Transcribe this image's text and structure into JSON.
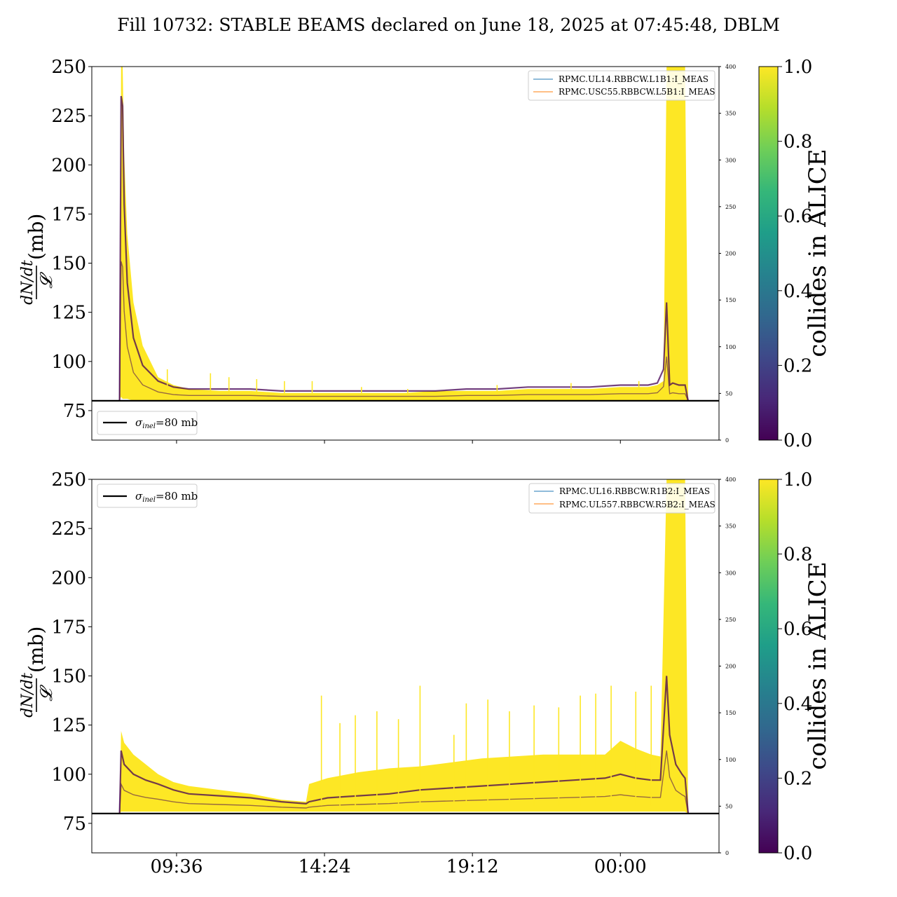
{
  "title": "Fill 10732: STABLE BEAMS declared on June 18, 2025 at 07:45:48, DBLM",
  "colors": {
    "viridis": [
      "#440154",
      "#482878",
      "#3e4989",
      "#31688e",
      "#26828e",
      "#1f9e89",
      "#35b779",
      "#6ece58",
      "#b5de2b",
      "#fde725"
    ],
    "data_fill": "#fde725",
    "data_dark": "#440154",
    "legend_blue": "#1f77b4",
    "legend_orange": "#ff7f0e",
    "sigma_line": "#000000"
  },
  "chart_data": [
    {
      "type": "area",
      "ylabel_num": "dN/dt",
      "ylabel_den": "𝓛",
      "ylabel_unit": "(mb)",
      "ylim": [
        60,
        250
      ],
      "yticks": [
        75,
        100,
        125,
        150,
        175,
        200,
        225,
        250
      ],
      "y2lim": [
        0,
        400
      ],
      "y2ticks": [
        0,
        50,
        100,
        150,
        200,
        250,
        300,
        350,
        400
      ],
      "xticks": [
        "09:36",
        "14:24",
        "19:12",
        "00:00"
      ],
      "xtick_hours": [
        9.6,
        14.4,
        19.2,
        24.0
      ],
      "xlim_hours": [
        6.85,
        27.2
      ],
      "show_xtick_labels": false,
      "legend_placement": "top-right",
      "legend": [
        {
          "label": "RPMC.UL14.RBBCW.L1B1:I_MEAS",
          "color": "#1f77b4"
        },
        {
          "label": "RPMC.USC55.RBBCW.L5B1:I_MEAS",
          "color": "#ff7f0e"
        }
      ],
      "sigma_legend_placement": "bottom-left",
      "sigma_legend_symbol": "σ",
      "sigma_legend_sub": "inel",
      "sigma_legend_value": "=80 mb",
      "sigma_inel": 80,
      "colorbar": {
        "label": "collides in ALICE",
        "ticks": [
          "0.0",
          "0.2",
          "0.4",
          "0.6",
          "0.8",
          "1.0"
        ],
        "range": [
          0,
          1
        ]
      },
      "envelope": {
        "x": [
          7.75,
          7.8,
          7.85,
          7.9,
          8.0,
          8.2,
          8.5,
          9.0,
          9.5,
          10.0,
          11.0,
          12.0,
          13.0,
          14.0,
          15.0,
          16.0,
          17.0,
          18.0,
          19.0,
          20.0,
          21.0,
          22.0,
          23.0,
          24.0,
          24.9,
          25.2,
          25.4,
          25.5,
          25.6,
          25.7,
          25.9,
          26.0,
          26.1,
          26.2
        ],
        "upper": [
          80,
          250,
          250,
          205,
          165,
          130,
          108,
          92,
          88,
          86,
          85,
          85,
          84,
          84,
          84,
          84,
          84,
          85,
          85,
          85,
          86,
          86,
          86,
          87,
          87,
          88,
          90,
          250,
          250,
          250,
          250,
          250,
          250,
          80
        ],
        "dark": [
          80,
          235,
          230,
          180,
          140,
          112,
          98,
          90,
          87,
          86,
          86,
          86,
          85,
          85,
          85,
          85,
          85,
          85,
          86,
          86,
          87,
          87,
          87,
          88,
          88,
          89,
          96,
          130,
          88,
          89,
          88,
          88,
          88,
          80
        ],
        "lower": [
          80,
          82,
          81,
          81,
          81,
          80,
          80,
          80,
          80,
          80,
          80,
          80,
          80,
          80,
          80,
          80,
          80,
          80,
          80,
          80,
          80,
          80,
          80,
          80,
          80,
          80,
          80,
          80,
          80,
          80,
          80,
          80,
          80,
          80
        ]
      },
      "spikes": [
        {
          "x": 9.3,
          "y": 96
        },
        {
          "x": 10.7,
          "y": 94
        },
        {
          "x": 11.3,
          "y": 92
        },
        {
          "x": 12.2,
          "y": 91
        },
        {
          "x": 13.1,
          "y": 90
        },
        {
          "x": 14.0,
          "y": 90
        },
        {
          "x": 15.6,
          "y": 87
        },
        {
          "x": 17.1,
          "y": 86
        },
        {
          "x": 20.0,
          "y": 88
        },
        {
          "x": 22.4,
          "y": 89
        },
        {
          "x": 24.6,
          "y": 90
        }
      ]
    },
    {
      "type": "area",
      "ylabel_num": "dN/dt",
      "ylabel_den": "𝓛",
      "ylabel_unit": "(mb)",
      "ylim": [
        60,
        250
      ],
      "yticks": [
        75,
        100,
        125,
        150,
        175,
        200,
        225,
        250
      ],
      "y2lim": [
        0,
        400
      ],
      "y2ticks": [
        0,
        50,
        100,
        150,
        200,
        250,
        300,
        350,
        400
      ],
      "xticks": [
        "09:36",
        "14:24",
        "19:12",
        "00:00"
      ],
      "xtick_hours": [
        9.6,
        14.4,
        19.2,
        24.0
      ],
      "xlim_hours": [
        6.85,
        27.2
      ],
      "show_xtick_labels": true,
      "legend_placement": "top-right",
      "legend": [
        {
          "label": "RPMC.UL16.RBBCW.R1B2:I_MEAS",
          "color": "#1f77b4"
        },
        {
          "label": "RPMC.UL557.RBBCW.R5B2:I_MEAS",
          "color": "#ff7f0e"
        }
      ],
      "sigma_legend_placement": "top-left",
      "sigma_legend_symbol": "σ",
      "sigma_legend_sub": "inel",
      "sigma_legend_value": "=80 mb",
      "sigma_inel": 80,
      "colorbar": {
        "label": "collides in ALICE",
        "ticks": [
          "0.0",
          "0.2",
          "0.4",
          "0.6",
          "0.8",
          "1.0"
        ],
        "range": [
          0,
          1
        ]
      },
      "envelope": {
        "x": [
          7.75,
          7.8,
          7.9,
          8.2,
          8.6,
          9.0,
          9.5,
          10.0,
          11.0,
          12.0,
          13.0,
          13.8,
          13.9,
          14.5,
          15.5,
          16.5,
          17.5,
          18.5,
          19.5,
          20.5,
          21.5,
          22.5,
          23.5,
          24.0,
          24.5,
          25.0,
          25.3,
          25.5,
          25.6,
          25.8,
          26.0,
          26.1,
          26.2
        ],
        "upper": [
          80,
          122,
          116,
          110,
          105,
          100,
          96,
          94,
          92,
          90,
          87,
          86,
          95,
          98,
          101,
          103,
          104,
          106,
          108,
          109,
          110,
          110,
          110,
          117,
          113,
          110,
          109,
          250,
          250,
          250,
          250,
          250,
          80
        ],
        "dark": [
          80,
          112,
          105,
          100,
          97,
          95,
          92,
          90,
          89,
          88,
          86,
          85,
          86,
          88,
          89,
          90,
          92,
          93,
          94,
          95,
          96,
          97,
          98,
          100,
          98,
          97,
          97,
          150,
          120,
          105,
          100,
          98,
          80
        ],
        "lower": [
          80,
          81,
          81,
          81,
          81,
          81,
          81,
          81,
          81,
          81,
          81,
          81,
          81,
          81,
          81,
          81,
          81,
          81,
          81,
          81,
          81,
          81,
          81,
          81,
          81,
          81,
          81,
          81,
          81,
          81,
          81,
          81,
          80
        ]
      },
      "spikes": [
        {
          "x": 14.3,
          "y": 140
        },
        {
          "x": 14.9,
          "y": 126
        },
        {
          "x": 15.4,
          "y": 130
        },
        {
          "x": 16.1,
          "y": 132
        },
        {
          "x": 16.8,
          "y": 128
        },
        {
          "x": 17.5,
          "y": 145
        },
        {
          "x": 18.6,
          "y": 120
        },
        {
          "x": 19.0,
          "y": 136
        },
        {
          "x": 19.7,
          "y": 138
        },
        {
          "x": 20.4,
          "y": 132
        },
        {
          "x": 21.2,
          "y": 135
        },
        {
          "x": 22.0,
          "y": 134
        },
        {
          "x": 22.7,
          "y": 140
        },
        {
          "x": 23.2,
          "y": 141
        },
        {
          "x": 23.7,
          "y": 145
        },
        {
          "x": 24.5,
          "y": 142
        },
        {
          "x": 25.0,
          "y": 145
        }
      ]
    }
  ]
}
